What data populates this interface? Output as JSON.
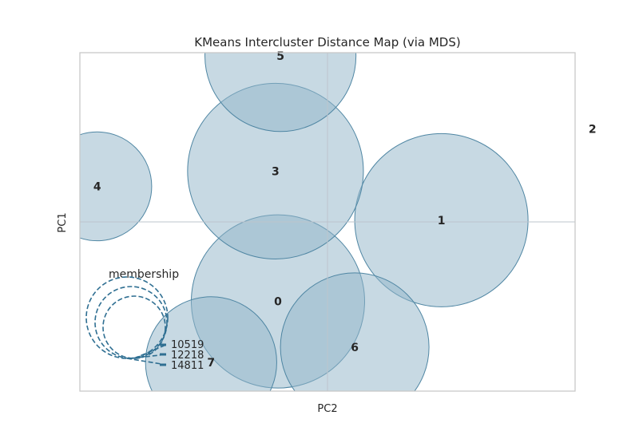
{
  "chart_data": {
    "type": "scatter",
    "title": "KMeans Intercluster Distance Map (via MDS)",
    "xlabel": "PC2",
    "ylabel": "PC1",
    "xlim": [
      -1,
      1
    ],
    "ylim": [
      -1,
      1
    ],
    "grid": false,
    "colors": {
      "fill": "#94b6ca",
      "edge": "#4f86a3",
      "legend": "#2f6f92",
      "frame": "#c7c7c7"
    },
    "clusters": [
      {
        "label": "0",
        "x": -0.2,
        "y": -0.47,
        "r": 0.35
      },
      {
        "label": "1",
        "x": 0.46,
        "y": 0.01,
        "r": 0.35
      },
      {
        "label": "2",
        "x": 1.07,
        "y": 0.55,
        "r": 0.045
      },
      {
        "label": "3",
        "x": -0.21,
        "y": 0.3,
        "r": 0.355
      },
      {
        "label": "4",
        "x": -0.93,
        "y": 0.21,
        "r": 0.22
      },
      {
        "label": "5",
        "x": -0.19,
        "y": 0.98,
        "r": 0.305
      },
      {
        "label": "6",
        "x": 0.11,
        "y": -0.74,
        "r": 0.3
      },
      {
        "label": "7",
        "x": -0.47,
        "y": -0.83,
        "r": 0.265
      }
    ],
    "legend": {
      "title": "membership",
      "placement": "lower-left",
      "entries": [
        "10519",
        "12218",
        "14811"
      ]
    }
  }
}
